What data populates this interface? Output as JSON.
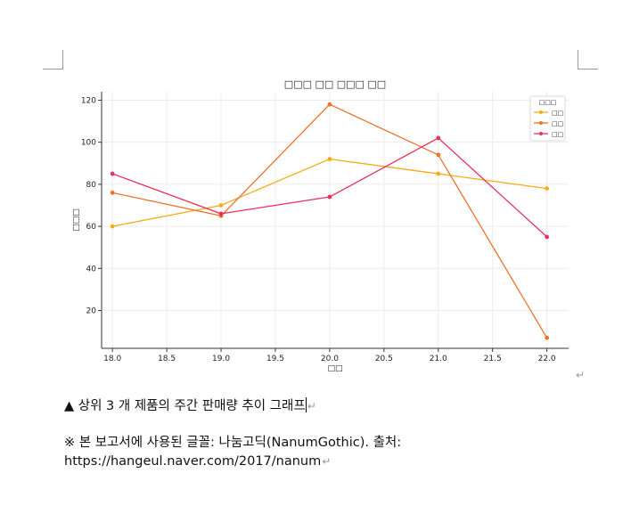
{
  "chart_data": {
    "type": "line",
    "title": "□□□ □□ □□□ □□",
    "xlabel": "□□",
    "ylabel": "□□□",
    "x": [
      18.0,
      19.0,
      20.0,
      21.0,
      22.0
    ],
    "xticks": [
      "18.0",
      "18.5",
      "19.0",
      "19.5",
      "20.0",
      "20.5",
      "21.0",
      "21.5",
      "22.0"
    ],
    "yticks": [
      "20",
      "40",
      "60",
      "80",
      "100",
      "120"
    ],
    "xlim": [
      17.9,
      22.2
    ],
    "ylim": [
      2,
      124
    ],
    "grid": true,
    "legend": {
      "title": "□□□",
      "placement": "top-right"
    },
    "series": [
      {
        "name": "□□",
        "color": "#f5ab1a",
        "values": [
          60,
          70,
          92,
          85,
          78
        ]
      },
      {
        "name": "□□",
        "color": "#ee7227",
        "values": [
          76,
          65,
          118,
          94,
          7
        ]
      },
      {
        "name": "□□",
        "color": "#e8325a",
        "values": [
          85,
          66,
          74,
          102,
          55
        ]
      }
    ]
  },
  "caption": "▲ 상위 3 개 제품의 주간 판매량 추이 그래프",
  "note_line1": "※ 본 보고서에 사용된 글꼴: 나눔고딕(NanumGothic). 출처:",
  "note_line2": "https://hangeul.naver.com/2017/nanum",
  "para_mark": "↵"
}
